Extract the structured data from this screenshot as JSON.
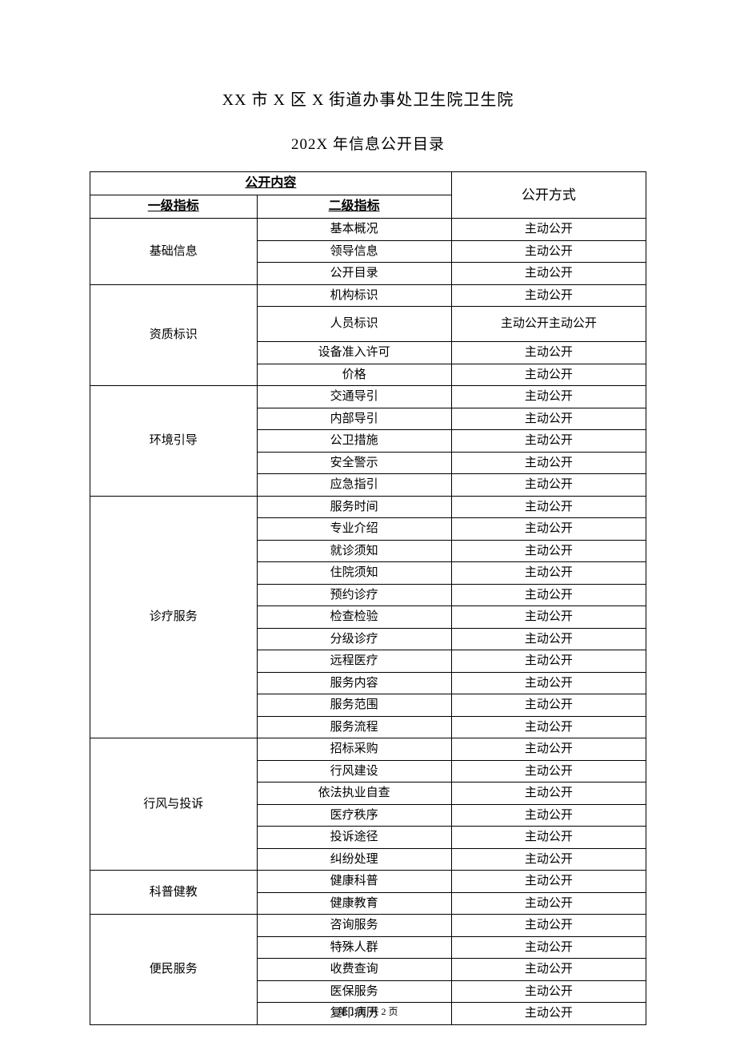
{
  "title1": "XX 市 X 区 X 街道办事处卫生院卫生院",
  "title2": "202X 年信息公开目录",
  "headers": {
    "content": "公开内容",
    "level1": "一级指标",
    "level2": "二级指标",
    "method": "公开方式"
  },
  "footer": "第 1 页 共 2 页",
  "table": {
    "type": "table",
    "border_color": "#000000",
    "background_color": "#ffffff",
    "text_color": "#000000",
    "font_size": 15,
    "groups": [
      {
        "level1": "基础信息",
        "rows": [
          {
            "level2": "基本概况",
            "method": "主动公开"
          },
          {
            "level2": "领导信息",
            "method": "主动公开"
          },
          {
            "level2": "公开目录",
            "method": "主动公开"
          }
        ]
      },
      {
        "level1": "资质标识",
        "rows": [
          {
            "level2": "机构标识",
            "method": "主动公开"
          },
          {
            "level2": "人员标识",
            "method": "主动公开主动公开",
            "tall": true
          },
          {
            "level2": "设备准入许可",
            "method": "主动公开"
          },
          {
            "level2": "价格",
            "method": "主动公开"
          }
        ]
      },
      {
        "level1": "环境引导",
        "rows": [
          {
            "level2": "交通导引",
            "method": "主动公开"
          },
          {
            "level2": "内部导引",
            "method": "主动公开"
          },
          {
            "level2": "公卫措施",
            "method": "主动公开"
          },
          {
            "level2": "安全警示",
            "method": "主动公开"
          },
          {
            "level2": "应急指引",
            "method": "主动公开"
          }
        ]
      },
      {
        "level1": "诊疗服务",
        "rows": [
          {
            "level2": "服务时间",
            "method": "主动公开"
          },
          {
            "level2": "专业介绍",
            "method": "主动公开"
          },
          {
            "level2": "就诊须知",
            "method": "主动公开"
          },
          {
            "level2": "住院须知",
            "method": "主动公开"
          },
          {
            "level2": "预约诊疗",
            "method": "主动公开"
          },
          {
            "level2": "检查检验",
            "method": "主动公开"
          },
          {
            "level2": "分级诊疗",
            "method": "主动公开"
          },
          {
            "level2": "远程医疗",
            "method": "主动公开"
          },
          {
            "level2": "服务内容",
            "method": "主动公开"
          },
          {
            "level2": "服务范围",
            "method": "主动公开"
          },
          {
            "level2": "服务流程",
            "method": "主动公开"
          }
        ]
      },
      {
        "level1": "行风与投诉",
        "rows": [
          {
            "level2": "招标采购",
            "method": "主动公开"
          },
          {
            "level2": "行风建设",
            "method": "主动公开"
          },
          {
            "level2": "依法执业自查",
            "method": "主动公开"
          },
          {
            "level2": "医疗秩序",
            "method": "主动公开"
          },
          {
            "level2": "投诉途径",
            "method": "主动公开"
          },
          {
            "level2": "纠纷处理",
            "method": "主动公开"
          }
        ]
      },
      {
        "level1": "科普健教",
        "rows": [
          {
            "level2": "健康科普",
            "method": "主动公开"
          },
          {
            "level2": "健康教育",
            "method": "主动公开"
          }
        ]
      },
      {
        "level1": "便民服务",
        "rows": [
          {
            "level2": "咨询服务",
            "method": "主动公开"
          },
          {
            "level2": "特殊人群",
            "method": "主动公开"
          },
          {
            "level2": "收费查询",
            "method": "主动公开"
          },
          {
            "level2": "医保服务",
            "method": "主动公开"
          },
          {
            "level2": "复印病历",
            "method": "主动公开"
          }
        ]
      }
    ]
  }
}
